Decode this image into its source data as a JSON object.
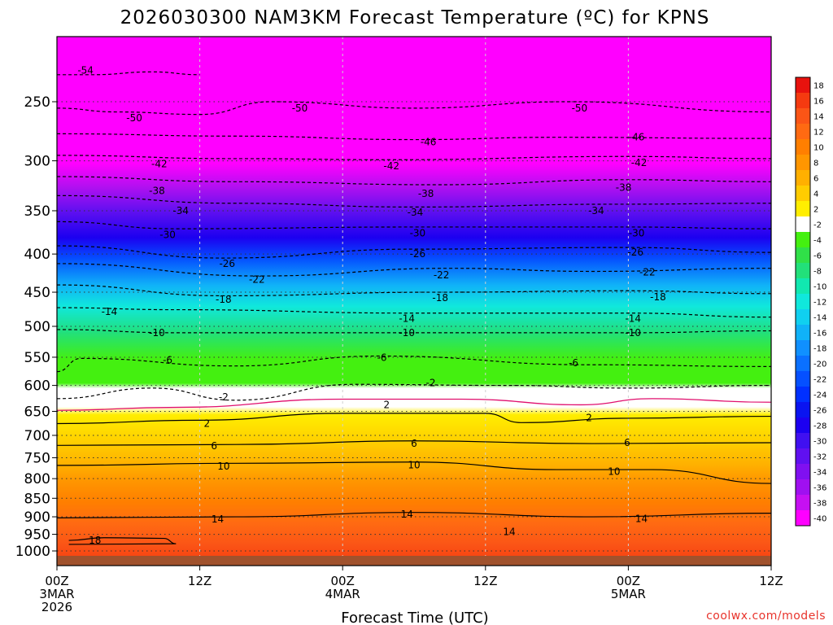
{
  "chart_data": {
    "type": "heatmap",
    "title": "2026030300 NAM3KM Forecast Temperature (ºC) for KPNS",
    "xlabel": "Forecast Time (UTC)",
    "ylabel": "",
    "credit": "coolwx.com/models",
    "x_ticks": [
      {
        "hour": 0,
        "lines": [
          "00Z",
          "3MAR",
          "2026"
        ]
      },
      {
        "hour": 12,
        "lines": [
          "12Z"
        ]
      },
      {
        "hour": 24,
        "lines": [
          "00Z",
          "4MAR"
        ]
      },
      {
        "hour": 36,
        "lines": [
          "12Z"
        ]
      },
      {
        "hour": 48,
        "lines": [
          "00Z",
          "5MAR"
        ]
      },
      {
        "hour": 60,
        "lines": [
          "12Z"
        ]
      }
    ],
    "xlim": [
      0,
      60
    ],
    "y_ticks": [
      250,
      300,
      350,
      400,
      450,
      500,
      550,
      600,
      650,
      700,
      750,
      800,
      850,
      900,
      950,
      1000
    ],
    "ylim": [
      200,
      1030
    ],
    "colorbar": {
      "levels": [
        18,
        16,
        14,
        12,
        10,
        8,
        6,
        4,
        2,
        -2,
        -4,
        -6,
        -8,
        -10,
        -12,
        -14,
        -16,
        -18,
        -20,
        -22,
        -24,
        -26,
        -28,
        -30,
        -32,
        -34,
        -36,
        -38,
        -40
      ],
      "colors": [
        "#e8120e",
        "#f53a10",
        "#fb5516",
        "#ff6a12",
        "#ff7f00",
        "#ff9600",
        "#ffb000",
        "#ffcc00",
        "#ffee00",
        "#ffffff",
        "#44f010",
        "#30e048",
        "#22e07a",
        "#11e8b0",
        "#10e8dc",
        "#10d0f0",
        "#10b2f8",
        "#1090ff",
        "#0a70ff",
        "#0550ff",
        "#0030ff",
        "#0a14f0",
        "#1c00f0",
        "#4010f0",
        "#6010f0",
        "#8010f0",
        "#a010f0",
        "#c610f2",
        "#ff00ff"
      ]
    },
    "series": [
      {
        "name": "-54 C",
        "values": [
          [
            0,
            230
          ],
          [
            3,
            230
          ],
          [
            8,
            228
          ],
          [
            12,
            230
          ]
        ]
      },
      {
        "name": "-50 C",
        "values": [
          [
            0,
            255
          ],
          [
            5,
            258
          ],
          [
            12,
            260
          ],
          [
            18,
            250
          ],
          [
            30,
            255
          ],
          [
            43,
            250
          ],
          [
            60,
            258
          ]
        ]
      },
      {
        "name": "-46 C",
        "values": [
          [
            0,
            276
          ],
          [
            15,
            278
          ],
          [
            30,
            281
          ],
          [
            42,
            279
          ],
          [
            60,
            280
          ]
        ]
      },
      {
        "name": "-42 C",
        "values": [
          [
            0,
            295
          ],
          [
            15,
            298
          ],
          [
            28,
            299
          ],
          [
            48,
            296
          ],
          [
            60,
            298
          ]
        ]
      },
      {
        "name": "-38 C",
        "values": [
          [
            0,
            315
          ],
          [
            15,
            320
          ],
          [
            32,
            323
          ],
          [
            48,
            318
          ],
          [
            60,
            320
          ]
        ]
      },
      {
        "name": "-34 C",
        "values": [
          [
            0,
            334
          ],
          [
            15,
            342
          ],
          [
            30,
            346
          ],
          [
            47,
            343
          ],
          [
            60,
            342
          ]
        ]
      },
      {
        "name": "-30 C",
        "values": [
          [
            0,
            362
          ],
          [
            10,
            370
          ],
          [
            30,
            368
          ],
          [
            48,
            368
          ],
          [
            60,
            370
          ]
        ]
      },
      {
        "name": "-26 C",
        "values": [
          [
            0,
            390
          ],
          [
            14,
            405
          ],
          [
            30,
            394
          ],
          [
            48,
            392
          ],
          [
            60,
            398
          ]
        ]
      },
      {
        "name": "-22 C",
        "values": [
          [
            0,
            412
          ],
          [
            17,
            428
          ],
          [
            33,
            418
          ],
          [
            45,
            422
          ],
          [
            60,
            418
          ]
        ]
      },
      {
        "name": "-18 C",
        "values": [
          [
            0,
            440
          ],
          [
            14,
            455
          ],
          [
            32,
            450
          ],
          [
            48,
            448
          ],
          [
            60,
            452
          ]
        ]
      },
      {
        "name": "-14 C",
        "values": [
          [
            0,
            472
          ],
          [
            10,
            475
          ],
          [
            30,
            480
          ],
          [
            48,
            480
          ],
          [
            60,
            486
          ]
        ]
      },
      {
        "name": "-10 C",
        "values": [
          [
            0,
            505
          ],
          [
            10,
            510
          ],
          [
            28,
            510
          ],
          [
            48,
            510
          ],
          [
            60,
            507
          ]
        ]
      },
      {
        "name": "-6 C",
        "values": [
          [
            0,
            575
          ],
          [
            2,
            552
          ],
          [
            15,
            565
          ],
          [
            27,
            548
          ],
          [
            45,
            563
          ],
          [
            60,
            566
          ]
        ]
      },
      {
        "name": "-2 C",
        "values": [
          [
            0,
            625
          ],
          [
            8,
            605
          ],
          [
            15,
            628
          ],
          [
            25,
            598
          ],
          [
            38,
            600
          ],
          [
            48,
            605
          ],
          [
            60,
            600
          ]
        ]
      },
      {
        "name": "0 C",
        "values": [
          [
            0,
            648
          ],
          [
            10,
            642
          ],
          [
            24,
            626
          ],
          [
            34,
            626
          ],
          [
            44,
            637
          ],
          [
            50,
            625
          ],
          [
            60,
            632
          ]
        ]
      },
      {
        "name": "2 C",
        "values": [
          [
            0,
            675
          ],
          [
            12,
            668
          ],
          [
            24,
            654
          ],
          [
            36,
            654
          ],
          [
            39,
            673
          ],
          [
            48,
            664
          ],
          [
            60,
            660
          ]
        ]
      },
      {
        "name": "6 C",
        "values": [
          [
            0,
            722
          ],
          [
            15,
            720
          ],
          [
            30,
            712
          ],
          [
            45,
            718
          ],
          [
            60,
            716
          ]
        ]
      },
      {
        "name": "10 C",
        "values": [
          [
            0,
            768
          ],
          [
            15,
            763
          ],
          [
            30,
            760
          ],
          [
            42,
            778
          ],
          [
            50,
            778
          ],
          [
            60,
            812
          ]
        ]
      },
      {
        "name": "14 C",
        "values": [
          [
            0,
            903
          ],
          [
            15,
            900
          ],
          [
            30,
            888
          ],
          [
            45,
            900
          ],
          [
            60,
            890
          ]
        ]
      },
      {
        "name": "18 C",
        "values": [
          [
            1,
            968
          ],
          [
            4,
            960
          ],
          [
            9,
            962
          ],
          [
            10,
            978
          ],
          [
            1,
            980
          ]
        ]
      }
    ],
    "contour_labels": [
      {
        "text": "-54",
        "hour": 2.4,
        "pressure": 227
      },
      {
        "text": "-50",
        "hour": 6.5,
        "pressure": 263
      },
      {
        "text": "-50",
        "hour": 20.4,
        "pressure": 255
      },
      {
        "text": "-50",
        "hour": 43.9,
        "pressure": 255
      },
      {
        "text": "-46",
        "hour": 31.2,
        "pressure": 283
      },
      {
        "text": "-46",
        "hour": 48.7,
        "pressure": 279
      },
      {
        "text": "-42",
        "hour": 8.6,
        "pressure": 303
      },
      {
        "text": "-42",
        "hour": 28.1,
        "pressure": 305
      },
      {
        "text": "-42",
        "hour": 48.9,
        "pressure": 302
      },
      {
        "text": "-38",
        "hour": 8.4,
        "pressure": 329
      },
      {
        "text": "-38",
        "hour": 31.0,
        "pressure": 332
      },
      {
        "text": "-38",
        "hour": 47.6,
        "pressure": 326
      },
      {
        "text": "-34",
        "hour": 10.4,
        "pressure": 350
      },
      {
        "text": "-34",
        "hour": 30.1,
        "pressure": 352
      },
      {
        "text": "-34",
        "hour": 45.3,
        "pressure": 350
      },
      {
        "text": "-30",
        "hour": 9.3,
        "pressure": 377
      },
      {
        "text": "-30",
        "hour": 30.3,
        "pressure": 375
      },
      {
        "text": "-30",
        "hour": 48.7,
        "pressure": 375
      },
      {
        "text": "-26",
        "hour": 14.3,
        "pressure": 412
      },
      {
        "text": "-26",
        "hour": 30.3,
        "pressure": 400
      },
      {
        "text": "-26",
        "hour": 48.6,
        "pressure": 398
      },
      {
        "text": "-22",
        "hour": 16.8,
        "pressure": 433
      },
      {
        "text": "-22",
        "hour": 32.3,
        "pressure": 427
      },
      {
        "text": "-22",
        "hour": 49.6,
        "pressure": 423
      },
      {
        "text": "-18",
        "hour": 14.0,
        "pressure": 460
      },
      {
        "text": "-18",
        "hour": 32.2,
        "pressure": 458
      },
      {
        "text": "-18",
        "hour": 50.5,
        "pressure": 457
      },
      {
        "text": "-14",
        "hour": 4.4,
        "pressure": 478
      },
      {
        "text": "-14",
        "hour": 29.4,
        "pressure": 488
      },
      {
        "text": "-14",
        "hour": 48.4,
        "pressure": 488
      },
      {
        "text": "-10",
        "hour": 8.4,
        "pressure": 510
      },
      {
        "text": "-10",
        "hour": 29.4,
        "pressure": 510
      },
      {
        "text": "-10",
        "hour": 48.4,
        "pressure": 510
      },
      {
        "text": "-6",
        "hour": 9.3,
        "pressure": 555
      },
      {
        "text": "-6",
        "hour": 27.3,
        "pressure": 551
      },
      {
        "text": "-6",
        "hour": 43.4,
        "pressure": 560
      },
      {
        "text": "-2",
        "hour": 14.0,
        "pressure": 622
      },
      {
        "text": "-2",
        "hour": 31.4,
        "pressure": 595
      },
      {
        "text": "2",
        "hour": 27.7,
        "pressure": 637
      },
      {
        "text": "2",
        "hour": 44.7,
        "pressure": 663
      },
      {
        "text": "2",
        "hour": 12.6,
        "pressure": 675
      },
      {
        "text": "6",
        "hour": 13.2,
        "pressure": 723
      },
      {
        "text": "6",
        "hour": 30.0,
        "pressure": 718
      },
      {
        "text": "6",
        "hour": 47.9,
        "pressure": 716
      },
      {
        "text": "10",
        "hour": 14.0,
        "pressure": 770
      },
      {
        "text": "10",
        "hour": 30.0,
        "pressure": 767
      },
      {
        "text": "10",
        "hour": 46.8,
        "pressure": 783
      },
      {
        "text": "14",
        "hour": 13.5,
        "pressure": 907
      },
      {
        "text": "14",
        "hour": 29.4,
        "pressure": 893
      },
      {
        "text": "14",
        "hour": 38.0,
        "pressure": 943
      },
      {
        "text": "14",
        "hour": 49.1,
        "pressure": 905
      },
      {
        "text": "18",
        "hour": 3.2,
        "pressure": 968
      }
    ]
  }
}
